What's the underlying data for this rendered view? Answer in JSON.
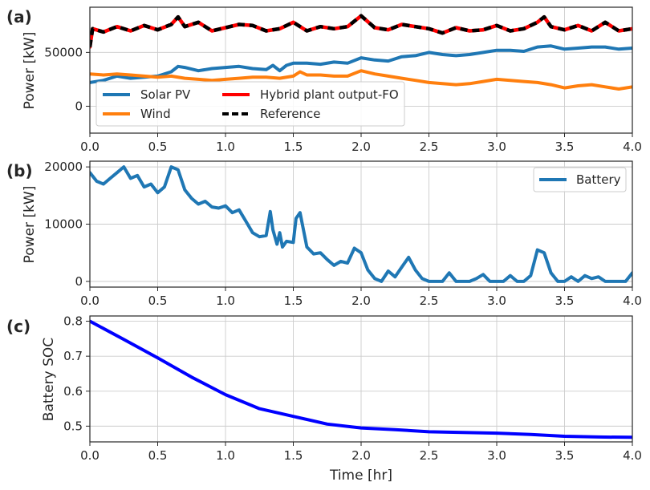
{
  "colors": {
    "solar": "#1f77b4",
    "wind": "#ff7f0e",
    "hybrid": "#ff0000",
    "reference": "#000000",
    "battery": "#1f77b4",
    "soc": "#0000ff"
  },
  "chart_data": [
    {
      "panel_label": "(a)",
      "type": "line",
      "title": "",
      "xlabel": "",
      "ylabel": "Power [kW]",
      "xlim": [
        0,
        4
      ],
      "ylim": [
        -25000,
        92000
      ],
      "x_ticks": [
        0,
        0.5,
        1,
        1.5,
        2,
        2.5,
        3,
        3.5,
        4
      ],
      "x_tick_labels": [
        "0.0",
        "0.5",
        "1.0",
        "1.5",
        "2.0",
        "2.5",
        "3.0",
        "3.5",
        "4.0"
      ],
      "y_ticks": [
        0,
        50000
      ],
      "y_tick_labels": [
        "0",
        "50000"
      ],
      "legend_position": "lower-left",
      "series": [
        {
          "name": "Solar PV",
          "x": [
            0,
            0.1,
            0.2,
            0.3,
            0.4,
            0.5,
            0.6,
            0.65,
            0.7,
            0.8,
            0.9,
            1.0,
            1.1,
            1.2,
            1.3,
            1.35,
            1.4,
            1.45,
            1.5,
            1.6,
            1.7,
            1.8,
            1.9,
            2.0,
            2.1,
            2.2,
            2.3,
            2.4,
            2.5,
            2.6,
            2.7,
            2.8,
            2.9,
            3.0,
            3.1,
            3.2,
            3.3,
            3.4,
            3.5,
            3.6,
            3.7,
            3.8,
            3.9,
            4.0
          ],
          "values": [
            22000,
            24000,
            28000,
            26000,
            27000,
            28000,
            32000,
            37000,
            36000,
            33000,
            35000,
            36000,
            37000,
            35000,
            34000,
            38000,
            33000,
            38000,
            40000,
            40000,
            39000,
            41000,
            40000,
            45000,
            43000,
            42000,
            46000,
            47000,
            50000,
            48000,
            47000,
            48000,
            50000,
            52000,
            52000,
            51000,
            55000,
            56000,
            53000,
            54000,
            55000,
            55000,
            53000,
            54000
          ]
        },
        {
          "name": "Wind",
          "x": [
            0,
            0.1,
            0.2,
            0.3,
            0.4,
            0.5,
            0.6,
            0.7,
            0.8,
            0.9,
            1.0,
            1.1,
            1.2,
            1.3,
            1.4,
            1.5,
            1.55,
            1.6,
            1.7,
            1.8,
            1.9,
            2.0,
            2.1,
            2.2,
            2.3,
            2.4,
            2.5,
            2.6,
            2.7,
            2.8,
            2.9,
            3.0,
            3.1,
            3.2,
            3.3,
            3.4,
            3.5,
            3.6,
            3.7,
            3.8,
            3.9,
            4.0
          ],
          "values": [
            30000,
            29000,
            30000,
            29000,
            28000,
            27000,
            28000,
            26000,
            25000,
            24000,
            25000,
            26000,
            27000,
            27000,
            26000,
            28000,
            32000,
            29000,
            29000,
            28000,
            28000,
            33000,
            30000,
            28000,
            26000,
            24000,
            22000,
            21000,
            20000,
            21000,
            23000,
            25000,
            24000,
            23000,
            22000,
            20000,
            17000,
            19000,
            20000,
            18000,
            16000,
            18000
          ]
        },
        {
          "name": "Hybrid plant output-FO",
          "x": [
            0,
            0.02,
            0.1,
            0.2,
            0.3,
            0.4,
            0.5,
            0.6,
            0.65,
            0.7,
            0.8,
            0.9,
            1.0,
            1.1,
            1.2,
            1.3,
            1.4,
            1.5,
            1.6,
            1.7,
            1.8,
            1.9,
            2.0,
            2.1,
            2.2,
            2.3,
            2.4,
            2.5,
            2.6,
            2.7,
            2.8,
            2.9,
            3.0,
            3.1,
            3.2,
            3.3,
            3.35,
            3.4,
            3.5,
            3.6,
            3.7,
            3.8,
            3.9,
            4.0
          ],
          "values": [
            55000,
            72000,
            69000,
            74000,
            70000,
            75000,
            71000,
            76000,
            83000,
            74000,
            78000,
            70000,
            73000,
            76000,
            75000,
            70000,
            72000,
            78000,
            70000,
            74000,
            72000,
            74000,
            84000,
            73000,
            71000,
            76000,
            74000,
            72000,
            68000,
            73000,
            70000,
            71000,
            75000,
            70000,
            72000,
            78000,
            83000,
            74000,
            71000,
            75000,
            70000,
            78000,
            70000,
            72000
          ]
        },
        {
          "name": "Reference",
          "x": [
            0,
            0.02,
            0.1,
            0.2,
            0.3,
            0.4,
            0.5,
            0.6,
            0.65,
            0.7,
            0.8,
            0.9,
            1.0,
            1.1,
            1.2,
            1.3,
            1.4,
            1.5,
            1.6,
            1.7,
            1.8,
            1.9,
            2.0,
            2.1,
            2.2,
            2.3,
            2.4,
            2.5,
            2.6,
            2.7,
            2.8,
            2.9,
            3.0,
            3.1,
            3.2,
            3.3,
            3.35,
            3.4,
            3.5,
            3.6,
            3.7,
            3.8,
            3.9,
            4.0
          ],
          "values": [
            55000,
            72000,
            69000,
            74000,
            70000,
            75000,
            71000,
            76000,
            83000,
            74000,
            78000,
            70000,
            73000,
            76000,
            75000,
            70000,
            72000,
            78000,
            70000,
            74000,
            72000,
            74000,
            84000,
            73000,
            71000,
            76000,
            74000,
            72000,
            68000,
            73000,
            70000,
            71000,
            75000,
            70000,
            72000,
            78000,
            83000,
            74000,
            71000,
            75000,
            70000,
            78000,
            70000,
            72000
          ]
        }
      ]
    },
    {
      "panel_label": "(b)",
      "type": "line",
      "title": "",
      "xlabel": "",
      "ylabel": "Power [kW]",
      "xlim": [
        0,
        4
      ],
      "ylim": [
        -1000,
        21000
      ],
      "x_ticks": [
        0,
        0.5,
        1,
        1.5,
        2,
        2.5,
        3,
        3.5,
        4
      ],
      "x_tick_labels": [
        "0.0",
        "0.5",
        "1.0",
        "1.5",
        "2.0",
        "2.5",
        "3.0",
        "3.5",
        "4.0"
      ],
      "y_ticks": [
        0,
        10000,
        20000
      ],
      "y_tick_labels": [
        "0",
        "10000",
        "20000"
      ],
      "legend_position": "top-right",
      "series": [
        {
          "name": "Battery",
          "x": [
            0,
            0.05,
            0.1,
            0.15,
            0.2,
            0.25,
            0.3,
            0.35,
            0.4,
            0.45,
            0.5,
            0.55,
            0.6,
            0.65,
            0.7,
            0.75,
            0.8,
            0.85,
            0.9,
            0.95,
            1.0,
            1.05,
            1.1,
            1.15,
            1.2,
            1.25,
            1.3,
            1.33,
            1.35,
            1.38,
            1.4,
            1.42,
            1.45,
            1.5,
            1.52,
            1.55,
            1.6,
            1.65,
            1.7,
            1.75,
            1.8,
            1.85,
            1.9,
            1.95,
            2.0,
            2.05,
            2.1,
            2.15,
            2.2,
            2.25,
            2.3,
            2.35,
            2.4,
            2.45,
            2.5,
            2.6,
            2.65,
            2.7,
            2.8,
            2.85,
            2.9,
            2.95,
            3.0,
            3.05,
            3.1,
            3.15,
            3.2,
            3.25,
            3.3,
            3.35,
            3.4,
            3.45,
            3.5,
            3.55,
            3.6,
            3.65,
            3.7,
            3.75,
            3.8,
            3.85,
            3.9,
            3.95,
            4.0
          ],
          "values": [
            19000,
            17500,
            17000,
            18000,
            19000,
            20000,
            18000,
            18500,
            16500,
            17000,
            15500,
            16500,
            20000,
            19500,
            16000,
            14500,
            13500,
            14000,
            13000,
            12800,
            13200,
            12000,
            12500,
            10500,
            8500,
            7800,
            8000,
            12200,
            9000,
            6500,
            8500,
            6000,
            7000,
            6800,
            11000,
            12000,
            6000,
            4800,
            5000,
            3800,
            2800,
            3500,
            3200,
            5800,
            5000,
            2000,
            500,
            0,
            1800,
            800,
            2500,
            4200,
            2000,
            500,
            0,
            0,
            1500,
            0,
            0,
            500,
            1200,
            0,
            0,
            0,
            1000,
            0,
            0,
            1000,
            5500,
            5000,
            1500,
            0,
            0,
            800,
            0,
            1000,
            500,
            800,
            0,
            0,
            0,
            0,
            1500
          ]
        }
      ]
    },
    {
      "panel_label": "(c)",
      "type": "line",
      "title": "",
      "xlabel": "Time [hr]",
      "ylabel": "Battery SOC",
      "xlim": [
        0,
        4
      ],
      "ylim": [
        0.455,
        0.815
      ],
      "x_ticks": [
        0,
        0.5,
        1,
        1.5,
        2,
        2.5,
        3,
        3.5,
        4
      ],
      "x_tick_labels": [
        "0.0",
        "0.5",
        "1.0",
        "1.5",
        "2.0",
        "2.5",
        "3.0",
        "3.5",
        "4.0"
      ],
      "y_ticks": [
        0.5,
        0.6,
        0.7,
        0.8
      ],
      "y_tick_labels": [
        "0.5",
        "0.6",
        "0.7",
        "0.8"
      ],
      "series": [
        {
          "name": "Battery SOC",
          "x": [
            0,
            0.25,
            0.5,
            0.75,
            1.0,
            1.25,
            1.5,
            1.75,
            2.0,
            2.25,
            2.5,
            2.75,
            3.0,
            3.25,
            3.5,
            3.75,
            4.0
          ],
          "values": [
            0.8,
            0.748,
            0.695,
            0.64,
            0.59,
            0.55,
            0.528,
            0.506,
            0.495,
            0.49,
            0.484,
            0.482,
            0.48,
            0.476,
            0.471,
            0.469,
            0.468
          ]
        }
      ]
    }
  ]
}
